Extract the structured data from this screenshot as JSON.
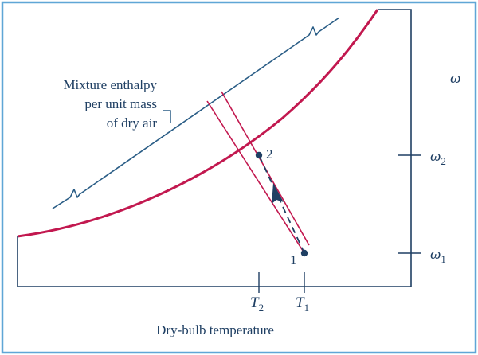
{
  "colors": {
    "border": "#5fa6d6",
    "ink": "#1f3f63",
    "saturation_curve": "#c2184f",
    "enthalpy_line": "#2a5d86"
  },
  "text": {
    "enthalpy_label_line1": "Mixture enthalpy",
    "enthalpy_label_line2": "per unit mass",
    "enthalpy_label_line3": "of dry air",
    "y_axis_symbol": "ω",
    "x_axis_title": "Dry-bulb temperature",
    "state_1": "1",
    "state_2": "2",
    "omega_2_symbol": "ω",
    "omega_2_subscript": "2",
    "omega_1_symbol": "ω",
    "omega_1_subscript": "1",
    "T2_symbol": "T",
    "T2_subscript": "2",
    "T1_symbol": "T",
    "T1_subscript": "1"
  }
}
